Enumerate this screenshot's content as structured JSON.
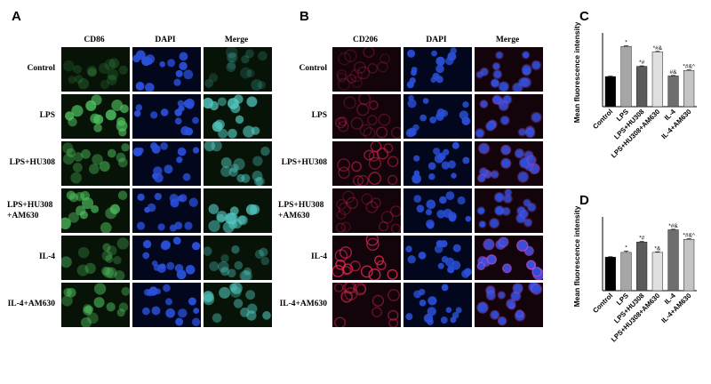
{
  "panels": {
    "a": {
      "letter": "A",
      "columns": [
        "CD86",
        "DAPI",
        "Merge"
      ],
      "rows": [
        "Control",
        "LPS",
        "LPS+HU308",
        "LPS+HU308\n+AM630",
        "IL-4",
        "IL-4+AM630"
      ]
    },
    "b": {
      "letter": "B",
      "columns": [
        "CD206",
        "DAPI",
        "Merge"
      ],
      "rows": [
        "Control",
        "LPS",
        "LPS+HU308",
        "LPS+HU308\n+AM630",
        "IL-4",
        "IL-4+AM630"
      ]
    },
    "c": {
      "letter": "C"
    },
    "d": {
      "letter": "D"
    }
  },
  "colors": {
    "cd86_green": "#4fbf5f",
    "dapi_blue": "#2a4fd8",
    "cd206_red": "#e0284f",
    "merge_cyan": "#52c8c0",
    "merge_magenta": "#b04bd8"
  },
  "chart_data": [
    {
      "type": "bar",
      "ylabel": "Mean fluorescence intensity",
      "xlabel": "",
      "categories": [
        "Control",
        "LPS",
        "LPS+HU308",
        "LPS+HU308+AM630",
        "IL-4",
        "IL-4+AM630"
      ],
      "values": [
        22,
        44,
        29.5,
        40,
        22.5,
        26.5
      ],
      "errors": [
        0.3,
        0.4,
        0.3,
        0.4,
        0.3,
        0.3
      ],
      "annotations": [
        "",
        "*",
        "*#",
        "*#&",
        "#&",
        "*#&^"
      ],
      "bar_colors": [
        "#000000",
        "#a6a6a6",
        "#5a5a5a",
        "#e0e0e0",
        "#6e6e6e",
        "#c4c4c4"
      ],
      "ylim": [
        0,
        50
      ],
      "grid": false
    },
    {
      "type": "bar",
      "ylabel": "Mean fluorescence intensity",
      "xlabel": "",
      "categories": [
        "Control",
        "LPS",
        "LPS+HU308",
        "LPS+HU308+AM630",
        "IL-4",
        "IL-4+AM630"
      ],
      "values": [
        24.5,
        28,
        35.5,
        28,
        44.5,
        37.5
      ],
      "errors": [
        0.3,
        0.8,
        0.4,
        0.4,
        0.4,
        0.4
      ],
      "annotations": [
        "",
        "*",
        "*#",
        "*&",
        "*#&",
        "*#&^"
      ],
      "bar_colors": [
        "#000000",
        "#a6a6a6",
        "#5a5a5a",
        "#e0e0e0",
        "#6e6e6e",
        "#c4c4c4"
      ],
      "ylim": [
        0,
        50
      ],
      "grid": false
    }
  ]
}
